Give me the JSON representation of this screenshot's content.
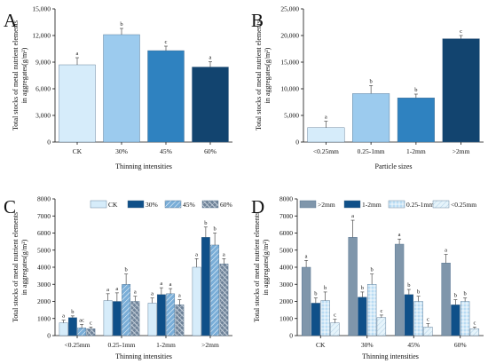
{
  "colors": {
    "CK": "#d6ecfa",
    "30%": "#0f5089",
    "45%": "#7aaed8",
    "60%": "#6f8399",
    "A_bars": [
      "#d6ecfa",
      "#9ccbee",
      "#2f82c0",
      "#12446f"
    ],
    "B_bars": [
      "#d6ecfa",
      "#9ccbee",
      "#2f82c0",
      "#12446f"
    ],
    "D": [
      ">2mm:#7f96ab",
      "1-2mm:#0f5089",
      "0.25-1mm:#b9dcf4",
      "<0.25mm:#e6f4fb"
    ]
  },
  "chart_data": [
    {
      "id": "A",
      "panel": "A",
      "type": "bar",
      "categories": [
        "CK",
        "30%",
        "45%",
        "60%"
      ],
      "values": [
        8700,
        12100,
        10300,
        8450
      ],
      "errors": [
        800,
        700,
        500,
        600
      ],
      "letters": [
        "a",
        "b",
        "c",
        "a"
      ],
      "xlabel": "Thinning intensities",
      "ylabel": [
        "Total stocks of metal nutrient elements",
        "in aggregates(g/m²)"
      ],
      "ylim": [
        0,
        15000
      ],
      "yticks": [
        "0",
        "3,000",
        "6,000",
        "9,000",
        "12,000",
        "15,000"
      ],
      "legend": []
    },
    {
      "id": "B",
      "panel": "B",
      "type": "bar",
      "categories": [
        "<0.25mm",
        "0.25-1mm",
        "1-2mm",
        ">2mm"
      ],
      "values": [
        2700,
        9100,
        8300,
        19400
      ],
      "errors": [
        1200,
        1500,
        700,
        600
      ],
      "letters": [
        "a",
        "b",
        "b",
        "c"
      ],
      "xlabel": "Particle sizes",
      "ylabel": [
        "Total stocks of metal nutrient elements",
        "in aggregates(g/m²)"
      ],
      "ylim": [
        0,
        25000
      ],
      "yticks": [
        "0",
        "5,000",
        "10,000",
        "15,000",
        "20,000",
        "25,000"
      ],
      "legend": []
    },
    {
      "id": "C",
      "panel": "C",
      "type": "bar",
      "categories": [
        "<0.25mm",
        "0.25-1mm",
        "1-2mm",
        ">2mm"
      ],
      "series": [
        {
          "name": "CK",
          "values": [
            750,
            2050,
            1900,
            4000
          ],
          "errors": [
            150,
            400,
            300,
            500
          ],
          "letters": [
            "a",
            "a",
            "a",
            "a"
          ]
        },
        {
          "name": "30%",
          "values": [
            1050,
            2000,
            2400,
            5750
          ],
          "errors": [
            100,
            500,
            400,
            600
          ],
          "letters": [
            "b",
            "a",
            "a",
            "b"
          ]
        },
        {
          "name": "45%",
          "values": [
            450,
            3000,
            2450,
            5300
          ],
          "errors": [
            200,
            600,
            300,
            700
          ],
          "letters": [
            "ac",
            "b",
            "a",
            "b"
          ]
        },
        {
          "name": "60%",
          "values": [
            400,
            2000,
            1800,
            4200
          ],
          "errors": [
            100,
            300,
            300,
            300
          ],
          "letters": [
            "c",
            "a",
            "a",
            "a"
          ]
        }
      ],
      "xlabel": "Thinning intensities",
      "ylabel": [
        "Total stocks of metal nutrient elements",
        "in aggregates(g/m²)"
      ],
      "ylim": [
        0,
        8000
      ],
      "yticks": [
        "0",
        "1000",
        "2000",
        "3000",
        "4000",
        "5000",
        "6000",
        "7000",
        "8000"
      ],
      "legend": [
        "CK",
        "30%",
        "45%",
        "60%"
      ]
    },
    {
      "id": "D",
      "panel": "D",
      "type": "bar",
      "categories": [
        "CK",
        "30%",
        "45%",
        "60%"
      ],
      "series": [
        {
          "name": ">2mm",
          "values": [
            4000,
            5750,
            5350,
            4250
          ],
          "errors": [
            400,
            1000,
            300,
            500
          ],
          "letters": [
            "a",
            "a",
            "a",
            "a"
          ]
        },
        {
          "name": "1-2mm",
          "values": [
            1900,
            2250,
            2400,
            1800
          ],
          "errors": [
            300,
            300,
            300,
            300
          ],
          "letters": [
            "b",
            "b",
            "b",
            "b"
          ]
        },
        {
          "name": "0.25-1mm",
          "values": [
            2050,
            3000,
            2000,
            2000
          ],
          "errors": [
            500,
            600,
            300,
            200
          ],
          "letters": [
            "b",
            "b",
            "b",
            "b"
          ]
        },
        {
          "name": "<0.25mm",
          "values": [
            750,
            1050,
            500,
            400
          ],
          "errors": [
            200,
            150,
            200,
            100
          ],
          "letters": [
            "c",
            "c",
            "c",
            "c"
          ]
        }
      ],
      "xlabel": "Thinning intensities",
      "ylabel": [
        "Total stocks of metal nutrient elements",
        "in aggregates(g/m²)"
      ],
      "ylim": [
        0,
        8000
      ],
      "yticks": [
        "0",
        "1000",
        "2000",
        "3000",
        "4000",
        "5000",
        "6000",
        "7000",
        "8000"
      ],
      "legend": [
        ">2mm",
        "1-2mm",
        "0.25-1mm",
        "<0.25mm"
      ]
    }
  ]
}
